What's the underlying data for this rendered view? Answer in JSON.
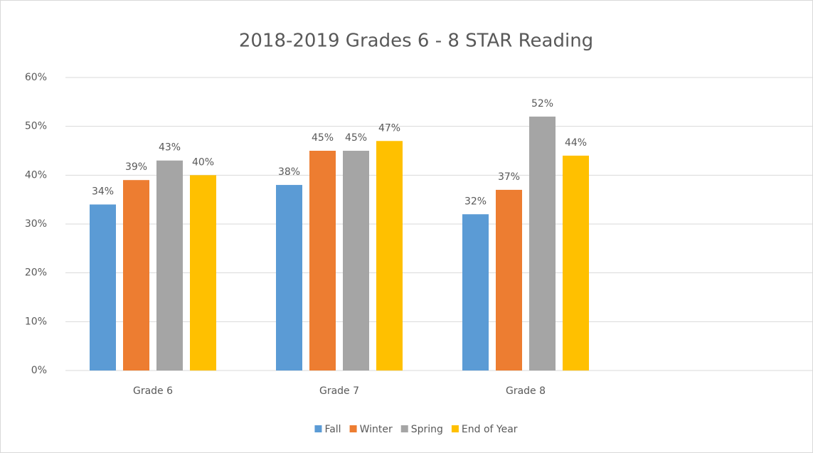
{
  "chart_data": {
    "type": "bar",
    "title": "2018-2019 Grades 6 - 8 STAR Reading",
    "categories": [
      "Grade 6",
      "Grade 7",
      "Grade 8"
    ],
    "series": [
      {
        "name": "Fall",
        "color": "#5b9bd5",
        "values": [
          34,
          38,
          32
        ],
        "value_labels": [
          "34%",
          "38%",
          "32%"
        ]
      },
      {
        "name": "Winter",
        "color": "#ed7d31",
        "values": [
          39,
          45,
          37
        ],
        "value_labels": [
          "39%",
          "45%",
          "37%"
        ]
      },
      {
        "name": "Spring",
        "color": "#a5a5a5",
        "values": [
          43,
          45,
          52
        ],
        "value_labels": [
          "43%",
          "45%",
          "52%"
        ]
      },
      {
        "name": "End of Year",
        "color": "#ffc000",
        "values": [
          40,
          47,
          44
        ],
        "value_labels": [
          "40%",
          "47%",
          "44%"
        ]
      }
    ],
    "ylim": [
      0,
      60
    ],
    "yticks": [
      {
        "value": 0,
        "label": "0%"
      },
      {
        "value": 10,
        "label": "10%"
      },
      {
        "value": 20,
        "label": "20%"
      },
      {
        "value": 30,
        "label": "30%"
      },
      {
        "value": 40,
        "label": "40%"
      },
      {
        "value": 50,
        "label": "50%"
      },
      {
        "value": 60,
        "label": "60%"
      }
    ],
    "grid": true,
    "legend": "bottom"
  }
}
